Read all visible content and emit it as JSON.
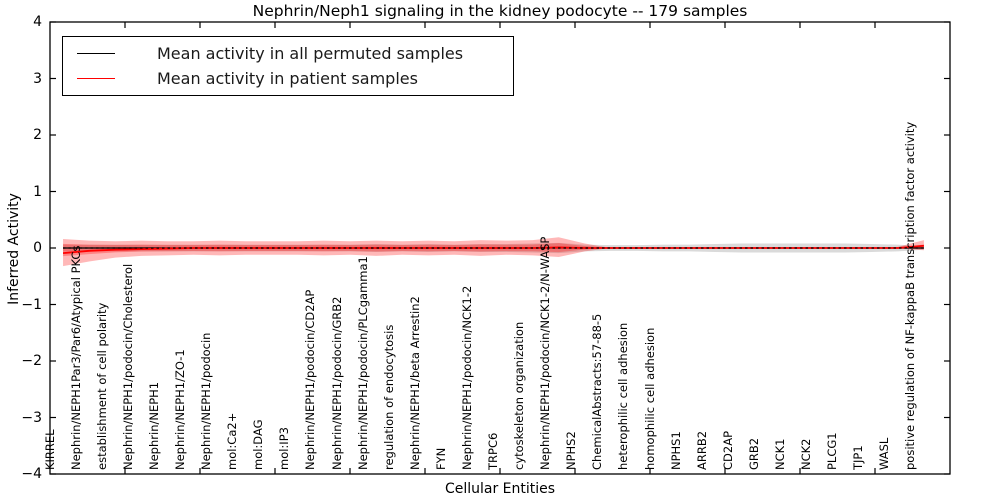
{
  "title": "Nephrin/Neph1 signaling in the kidney podocyte -- 179 samples",
  "legend": {
    "items": [
      {
        "label": "Mean activity in all permuted samples",
        "color": "#000000"
      },
      {
        "label": "Mean activity in patient samples",
        "color": "#ff0000"
      }
    ]
  },
  "chart_data": {
    "type": "line",
    "title": "Nephrin/Neph1 signaling in the kidney podocyte -- 179 samples",
    "xlabel": "Cellular Entities",
    "ylabel": "Inferred Activity",
    "ylim": [
      -4,
      4
    ],
    "yticks": [
      4,
      3,
      2,
      1,
      0,
      -1,
      -2,
      -3,
      -4
    ],
    "grid": false,
    "legend_position": "upper left",
    "categories": [
      "KIRREL",
      "Nephrin/NEPH1Par3/Par6/Atypical PKCs",
      "establishment of cell polarity",
      "Nephrin/NEPH1/podocin/Cholesterol",
      "Nephrin/NEPH1",
      "Nephrin/NEPH1/ZO-1",
      "Nephrin/NEPH1/podocin",
      "mol:Ca2+",
      "mol:DAG",
      "mol:IP3",
      "Nephrin/NEPH1/podocin/CD2AP",
      "Nephrin/NEPH1/podocin/GRB2",
      "Nephrin/NEPH1/podocin/PLCgamma1",
      "regulation of endocytosis",
      "Nephrin/NEPH1/beta Arrestin2",
      "FYN",
      "Nephrin/NEPH1/podocin/NCK1-2",
      "TRPC6",
      "cytoskeleton organization",
      "Nephrin/NEPH1/podocin/NCK1-2/N-WASP",
      "NPHS2",
      "ChemicalAbstracts:57-88-5",
      "heterophilic cell adhesion",
      "homophilic cell adhesion",
      "NPHS1",
      "ARRB2",
      "CD2AP",
      "GRB2",
      "NCK1",
      "NCK2",
      "PLCG1",
      "TJP1",
      "WASL",
      "positive regulation of NF-kappaB transcription factor activity"
    ],
    "series": [
      {
        "name": "Mean activity in all permuted samples",
        "color": "#000000",
        "style": "solid",
        "values": [
          0,
          0,
          0,
          0,
          0,
          0,
          0,
          0,
          0,
          0,
          0,
          0,
          0,
          0,
          0,
          0,
          0,
          0,
          0,
          0,
          0,
          0,
          0,
          0,
          0,
          0,
          0,
          0,
          0,
          0,
          0,
          0,
          0,
          0
        ]
      },
      {
        "name": "Mean activity in patient samples",
        "color": "#ff0000",
        "style": "solid",
        "values": [
          -0.09,
          -0.05,
          -0.03,
          -0.02,
          -0.01,
          0,
          0,
          0,
          0,
          0,
          0,
          0,
          0,
          0,
          0,
          0,
          0,
          0,
          0,
          0.01,
          0,
          0,
          0,
          0,
          0,
          0,
          0,
          0,
          0,
          0,
          0,
          0,
          0,
          0.04
        ]
      }
    ],
    "bands": [
      {
        "name": "permuted-samples-band",
        "color": "rgba(150,150,150,0.35)",
        "upper": [
          0.06,
          0.06,
          0.06,
          0.06,
          0.06,
          0.06,
          0.06,
          0.06,
          0.06,
          0.06,
          0.06,
          0.06,
          0.07,
          0.06,
          0.07,
          0.06,
          0.07,
          0.07,
          0.08,
          0.09,
          0.06,
          0.05,
          0.05,
          0.06,
          0.06,
          0.07,
          0.08,
          0.08,
          0.08,
          0.08,
          0.08,
          0.07,
          0.06,
          0.03
        ],
        "lower": [
          -0.06,
          -0.06,
          -0.06,
          -0.06,
          -0.06,
          -0.06,
          -0.06,
          -0.06,
          -0.06,
          -0.06,
          -0.06,
          -0.06,
          -0.07,
          -0.06,
          -0.07,
          -0.06,
          -0.07,
          -0.07,
          -0.08,
          -0.09,
          -0.06,
          -0.05,
          -0.05,
          -0.06,
          -0.06,
          -0.07,
          -0.08,
          -0.08,
          -0.08,
          -0.08,
          -0.08,
          -0.07,
          -0.06,
          -0.03
        ]
      },
      {
        "name": "patient-samples-band",
        "color": "rgba(255,0,0,0.28)",
        "upper": [
          0.16,
          0.13,
          0.12,
          0.13,
          0.12,
          0.12,
          0.13,
          0.12,
          0.12,
          0.12,
          0.13,
          0.12,
          0.13,
          0.12,
          0.13,
          0.12,
          0.14,
          0.13,
          0.14,
          0.19,
          0.08,
          0,
          0,
          0,
          0,
          0,
          0,
          0,
          0,
          0,
          0,
          0,
          0.02,
          0.14
        ],
        "lower": [
          -0.32,
          -0.24,
          -0.17,
          -0.14,
          -0.13,
          -0.12,
          -0.13,
          -0.12,
          -0.12,
          -0.12,
          -0.13,
          -0.12,
          -0.14,
          -0.12,
          -0.13,
          -0.12,
          -0.14,
          -0.12,
          -0.13,
          -0.16,
          -0.06,
          0,
          0,
          0,
          0,
          0,
          0,
          0,
          0,
          0,
          0,
          0,
          -0.01,
          -0.04
        ]
      }
    ]
  }
}
